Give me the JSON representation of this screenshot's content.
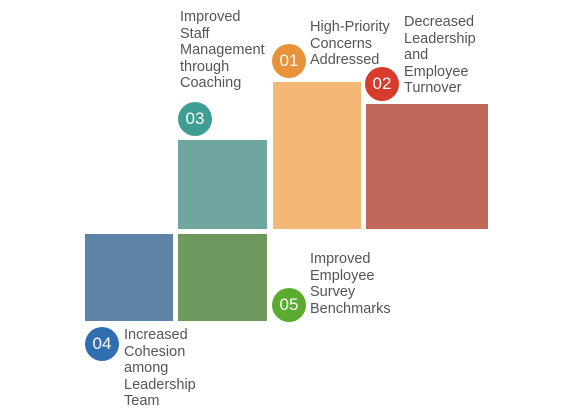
{
  "items": [
    {
      "number": "01",
      "text": "High-Priority\nConcerns\nAddressed",
      "color": "#e8923a",
      "block_color": "#f3b875"
    },
    {
      "number": "02",
      "text": "Decreased\nLeadership\nand\nEmployee\nTurnover",
      "color": "#d63b2c",
      "block_color": "#c0695b"
    },
    {
      "number": "03",
      "text": "Improved\nStaff\nManagement\nthrough\nCoaching",
      "color": "#3f9e93",
      "block_color": "#6fa69f"
    },
    {
      "number": "04",
      "text": "Increased\nCohesion\namong\nLeadership\nTeam",
      "color": "#2f6fb0",
      "block_color": "#5f82a7"
    },
    {
      "number": "05",
      "text": "Improved\nEmployee\nSurvey\nBenchmarks",
      "color": "#5aab2f",
      "block_color": "#6d9a5c"
    }
  ]
}
